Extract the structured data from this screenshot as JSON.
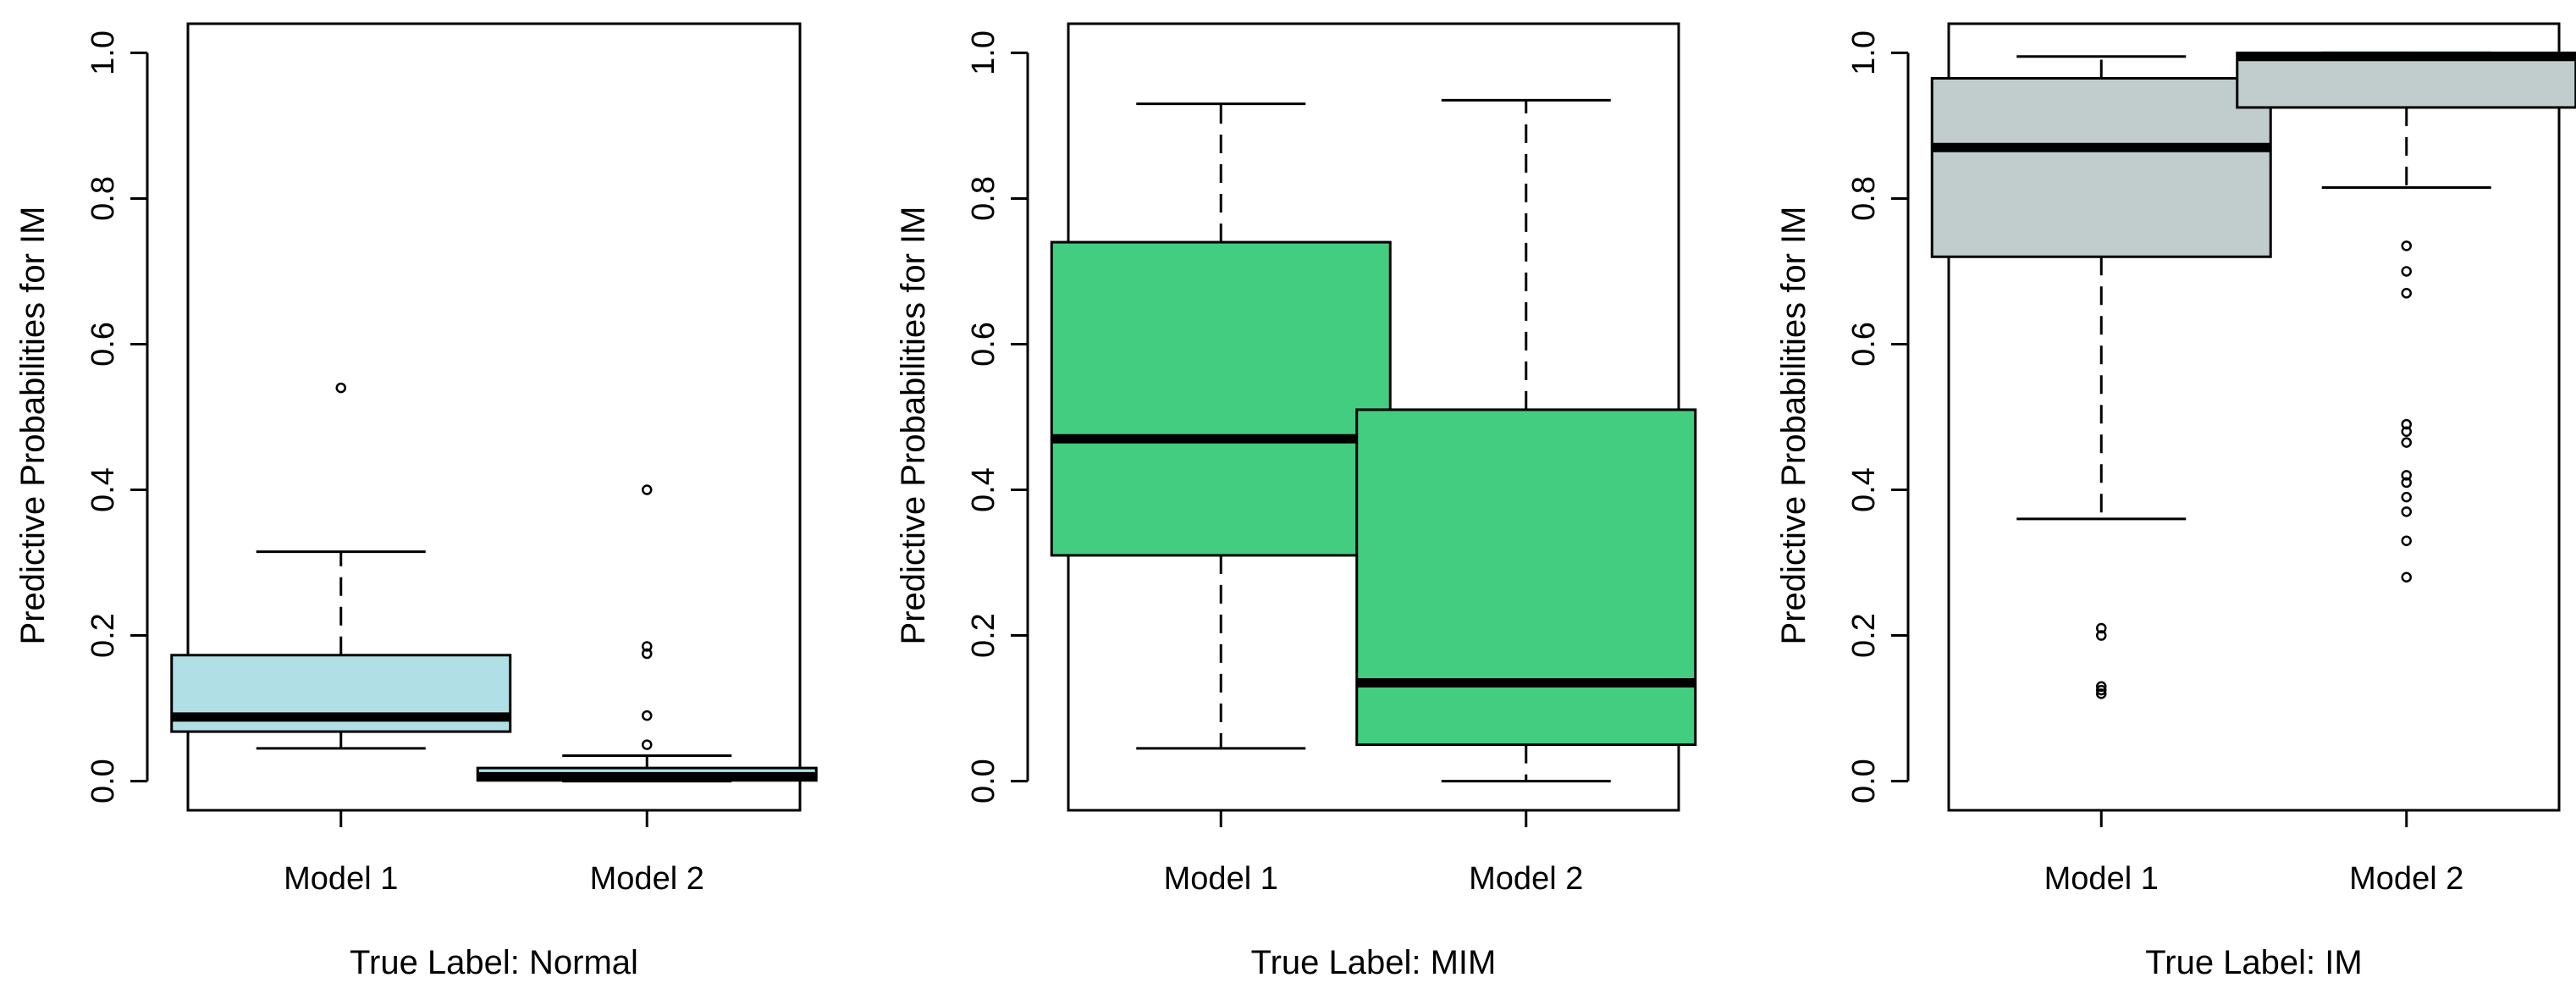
{
  "chart_data": [
    {
      "type": "box",
      "ylabel": "Predictive Probabilities for IM",
      "xlabel": "True Label: Normal",
      "categories": [
        "Model 1",
        "Model 2"
      ],
      "ylim": [
        -0.04,
        1.04
      ],
      "yticks": [
        "0.0",
        "0.2",
        "0.4",
        "0.6",
        "0.8",
        "1.0"
      ],
      "box_color": "#b0e0e6",
      "boxes": [
        {
          "name": "Model 1",
          "whisker_low": 0.045,
          "q1": 0.068,
          "median": 0.088,
          "q3": 0.173,
          "whisker_high": 0.315,
          "outliers": [
            0.54
          ]
        },
        {
          "name": "Model 2",
          "whisker_low": 0.0,
          "q1": 0.001,
          "median": 0.006,
          "q3": 0.018,
          "whisker_high": 0.035,
          "outliers": [
            0.05,
            0.09,
            0.175,
            0.185,
            0.4
          ]
        }
      ]
    },
    {
      "type": "box",
      "ylabel": "Predictive Probabilities for IM",
      "xlabel": "True Label: MIM",
      "categories": [
        "Model 1",
        "Model 2"
      ],
      "ylim": [
        -0.04,
        1.04
      ],
      "yticks": [
        "0.0",
        "0.2",
        "0.4",
        "0.6",
        "0.8",
        "1.0"
      ],
      "box_color": "#43cd80",
      "boxes": [
        {
          "name": "Model 1",
          "whisker_low": 0.045,
          "q1": 0.31,
          "median": 0.47,
          "q3": 0.74,
          "whisker_high": 0.93,
          "outliers": []
        },
        {
          "name": "Model 2",
          "whisker_low": 0.0,
          "q1": 0.05,
          "median": 0.135,
          "q3": 0.51,
          "whisker_high": 0.935,
          "outliers": []
        }
      ]
    },
    {
      "type": "box",
      "ylabel": "Predictive Probabilities for IM",
      "xlabel": "True Label: IM",
      "categories": [
        "Model 1",
        "Model 2"
      ],
      "ylim": [
        -0.04,
        1.04
      ],
      "yticks": [
        "0.0",
        "0.2",
        "0.4",
        "0.6",
        "0.8",
        "1.0"
      ],
      "box_color": "#c1cdcd",
      "boxes": [
        {
          "name": "Model 1",
          "whisker_low": 0.36,
          "q1": 0.72,
          "median": 0.87,
          "q3": 0.965,
          "whisker_high": 0.995,
          "outliers": [
            0.2,
            0.21,
            0.12,
            0.125,
            0.13
          ]
        },
        {
          "name": "Model 2",
          "whisker_low": 0.815,
          "q1": 0.925,
          "median": 0.995,
          "q3": 1.0,
          "whisker_high": 1.0,
          "outliers": [
            0.735,
            0.7,
            0.67,
            0.49,
            0.48,
            0.465,
            0.42,
            0.41,
            0.39,
            0.37,
            0.33,
            0.28
          ]
        }
      ]
    }
  ]
}
